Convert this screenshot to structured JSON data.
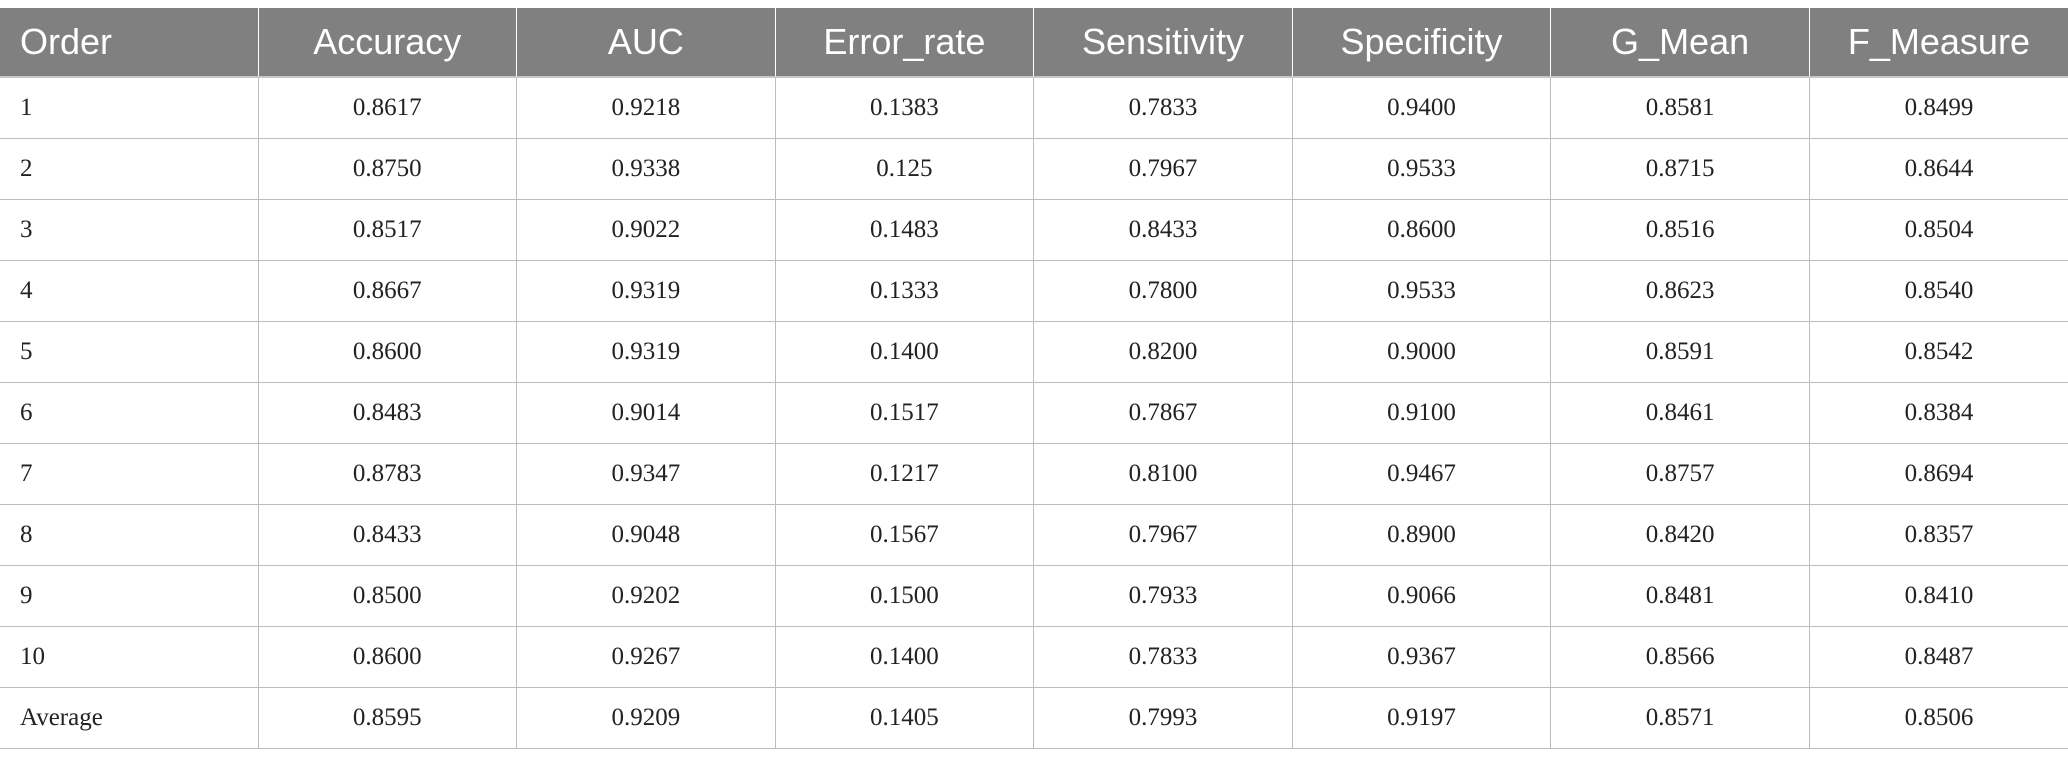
{
  "table": {
    "headers": [
      "Order",
      "Accuracy",
      "AUC",
      "Error_rate",
      "Sensitivity",
      "Specificity",
      "G_Mean",
      "F_Measure"
    ],
    "rows": [
      [
        "1",
        "0.8617",
        "0.9218",
        "0.1383",
        "0.7833",
        "0.9400",
        "0.8581",
        "0.8499"
      ],
      [
        "2",
        "0.8750",
        "0.9338",
        "0.125",
        "0.7967",
        "0.9533",
        "0.8715",
        "0.8644"
      ],
      [
        "3",
        "0.8517",
        "0.9022",
        "0.1483",
        "0.8433",
        "0.8600",
        "0.8516",
        "0.8504"
      ],
      [
        "4",
        "0.8667",
        "0.9319",
        "0.1333",
        "0.7800",
        "0.9533",
        "0.8623",
        "0.8540"
      ],
      [
        "5",
        "0.8600",
        "0.9319",
        "0.1400",
        "0.8200",
        "0.9000",
        "0.8591",
        "0.8542"
      ],
      [
        "6",
        "0.8483",
        "0.9014",
        "0.1517",
        "0.7867",
        "0.9100",
        "0.8461",
        "0.8384"
      ],
      [
        "7",
        "0.8783",
        "0.9347",
        "0.1217",
        "0.8100",
        "0.9467",
        "0.8757",
        "0.8694"
      ],
      [
        "8",
        "0.8433",
        "0.9048",
        "0.1567",
        "0.7967",
        "0.8900",
        "0.8420",
        "0.8357"
      ],
      [
        "9",
        "0.8500",
        "0.9202",
        "0.1500",
        "0.7933",
        "0.9066",
        "0.8481",
        "0.8410"
      ],
      [
        "10",
        "0.8600",
        "0.9267",
        "0.1400",
        "0.7833",
        "0.9367",
        "0.8566",
        "0.8487"
      ],
      [
        "Average",
        "0.8595",
        "0.9209",
        "0.1405",
        "0.7993",
        "0.9197",
        "0.8571",
        "0.8506"
      ]
    ],
    "header_color": "#808080",
    "header_text_color": "#ffffff",
    "grid_color": "#bdbdbd"
  }
}
